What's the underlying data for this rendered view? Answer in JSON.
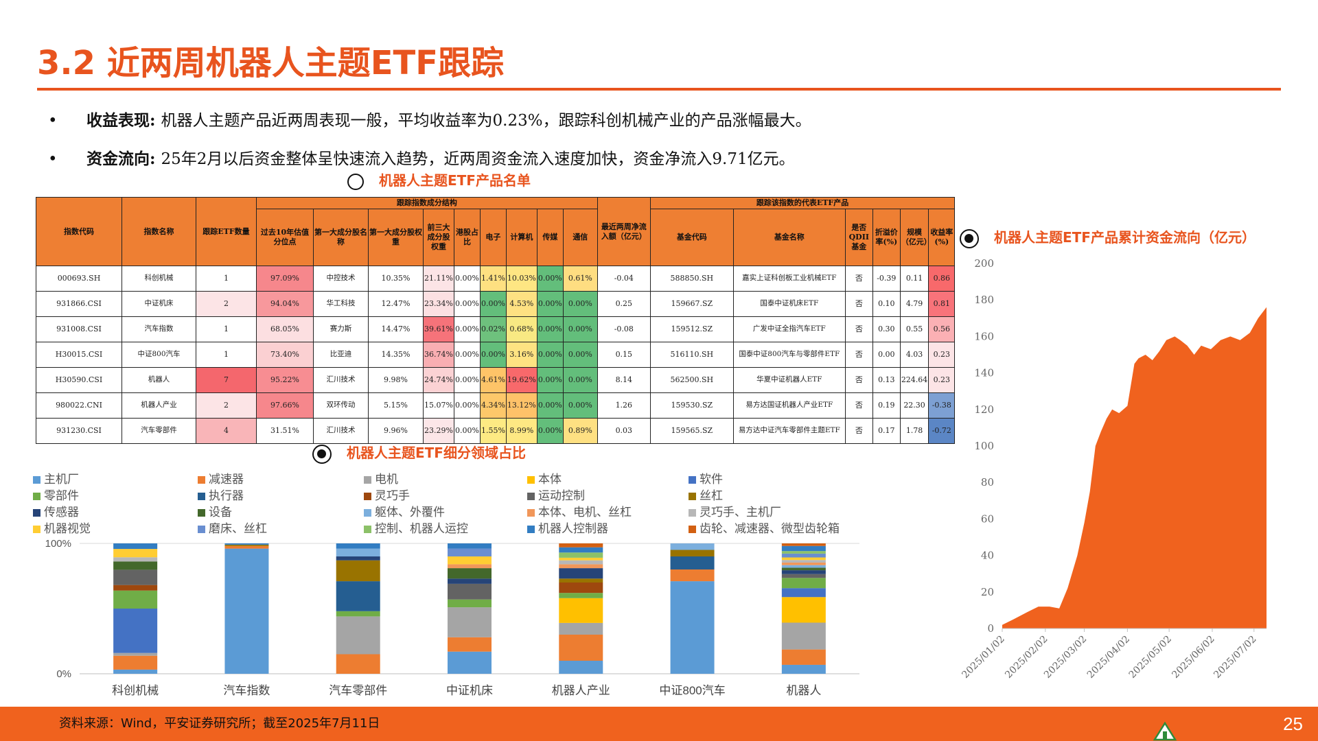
{
  "page": {
    "title": "3.2 近两周机器人主题ETF跟踪",
    "bullets": [
      {
        "label": "收益表现:",
        "text": "机器人主题产品近两周表现一般，平均收益率为0.23%，跟踪科创机械产业的产品涨幅最大。"
      },
      {
        "label": "资金流向:",
        "text": "25年2月以后资金整体呈快速流入趋势，近两周资金流入速度加快，资金净流入9.71亿元。"
      }
    ],
    "source": "资料来源：Wind，平安证券研究所；截至2025年7月11日",
    "page_number": "25"
  },
  "sections": {
    "table_title": "机器人主题ETF产品名单",
    "composition_title": "机器人主题ETF细分领域占比",
    "flow_title": "机器人主题ETF产品累计资金流向（亿元）"
  },
  "table": {
    "group_headers": {
      "structure": "跟踪指数成分结构",
      "products": "跟踪该指数的代表ETF产品"
    },
    "headers": [
      "指数代码",
      "指数名称",
      "跟踪ETF数量",
      "过去10年估值分位点",
      "第一大成分股名称",
      "第一大成分股权重",
      "前三大成分股权重",
      "港股占比",
      "电子",
      "计算机",
      "传媒",
      "通信",
      "最近两周净流入额（亿元）",
      "基金代码",
      "基金名称",
      "是否QDII基金",
      "折溢价率(%)",
      "规模（亿元）",
      "收益率(%)"
    ],
    "rows": [
      [
        "000693.SH",
        "科创机械",
        "1",
        "97.09%",
        "中控技术",
        "10.35%",
        "21.11%",
        "0.00%",
        "1.41%",
        "10.03%",
        "0.00%",
        "0.61%",
        "-0.04",
        "588850.SH",
        "嘉实上证科创板工业机械ETF",
        "否",
        "-0.39",
        "0.11",
        "0.86"
      ],
      [
        "931866.CSI",
        "中证机床",
        "2",
        "94.04%",
        "华工科技",
        "12.47%",
        "23.34%",
        "0.00%",
        "0.00%",
        "4.53%",
        "0.00%",
        "0.00%",
        "0.25",
        "159667.SZ",
        "国泰中证机床ETF",
        "否",
        "0.10",
        "4.79",
        "0.81"
      ],
      [
        "931008.CSI",
        "汽车指数",
        "1",
        "68.05%",
        "赛力斯",
        "14.47%",
        "39.61%",
        "0.00%",
        "0.02%",
        "0.68%",
        "0.00%",
        "0.00%",
        "-0.08",
        "159512.SZ",
        "广发中证全指汽车ETF",
        "否",
        "0.30",
        "0.55",
        "0.56"
      ],
      [
        "H30015.CSI",
        "中证800汽车",
        "1",
        "73.40%",
        "比亚迪",
        "14.35%",
        "36.74%",
        "0.00%",
        "0.00%",
        "3.16%",
        "0.00%",
        "0.00%",
        "0.15",
        "516110.SH",
        "国泰中证800汽车与零部件ETF",
        "否",
        "0.00",
        "4.03",
        "0.23"
      ],
      [
        "H30590.CSI",
        "机器人",
        "7",
        "95.22%",
        "汇川技术",
        "9.98%",
        "24.74%",
        "0.00%",
        "4.61%",
        "19.62%",
        "0.00%",
        "0.00%",
        "8.14",
        "562500.SH",
        "华夏中证机器人ETF",
        "否",
        "0.13",
        "224.64",
        "0.23"
      ],
      [
        "980022.CNI",
        "机器人产业",
        "2",
        "97.66%",
        "双环传动",
        "5.15%",
        "15.07%",
        "0.00%",
        "4.34%",
        "13.12%",
        "0.00%",
        "0.00%",
        "1.26",
        "159530.SZ",
        "易方达国证机器人产业ETF",
        "否",
        "0.19",
        "22.30",
        "-0.38"
      ],
      [
        "931230.CSI",
        "汽车零部件",
        "4",
        "31.51%",
        "汇川技术",
        "9.96%",
        "23.29%",
        "0.00%",
        "1.55%",
        "8.99%",
        "0.00%",
        "0.89%",
        "0.03",
        "159565.SZ",
        "易方达中证汽车零部件主题ETF",
        "否",
        "0.17",
        "1.78",
        "-0.72"
      ]
    ],
    "colors": {
      "header": "#EE7F33",
      "etf_count": [
        "#FFFFFF",
        "#FCE4E6",
        "#FFFFFF",
        "#FFFFFF",
        "#F4676D",
        "#FCE4E6",
        "#F9B5B8"
      ],
      "valuation": [
        "#F6878C",
        "#F7989C",
        "#FCDFE1",
        "#FBD0D2",
        "#F78D92",
        "#F6878C",
        "#FFFFFF"
      ],
      "top3": [
        "#FCE4E6",
        "#FCE0E2",
        "#F6737A",
        "#F9AEB2",
        "#FBD2D4",
        "#FFFFFF",
        "#FCE6E8"
      ],
      "electronics": [
        "#FEE081",
        "#63BE7B",
        "#6EC17D",
        "#63BE7B",
        "#FEC468",
        "#FDC86A",
        "#FDEA83"
      ],
      "computer": [
        "#FEE683",
        "#FEE182",
        "#F8E983",
        "#FEE382",
        "#F8696B",
        "#FEC269",
        "#FEE883"
      ],
      "media": "#63BE7B",
      "telecom": [
        "#FEDD81",
        "#63BE7B",
        "#63BE7B",
        "#63BE7B",
        "#63BE7B",
        "#63BE7B",
        "#FEE082"
      ],
      "return": [
        "#F8696B",
        "#F8737A",
        "#FBB0B4",
        "#FCE4E6",
        "#FCE4E6",
        "#7DA0D3",
        "#5B86C5"
      ]
    }
  },
  "composition": {
    "legend": [
      {
        "name": "主机厂",
        "color": "#5B9BD5"
      },
      {
        "name": "减速器",
        "color": "#ED7D31"
      },
      {
        "name": "电机",
        "color": "#A5A5A5"
      },
      {
        "name": "本体",
        "color": "#FFC000"
      },
      {
        "name": "软件",
        "color": "#4472C4"
      },
      {
        "name": "零部件",
        "color": "#70AD47"
      },
      {
        "name": "执行器",
        "color": "#255E91"
      },
      {
        "name": "灵巧手",
        "color": "#9E480E"
      },
      {
        "name": "运动控制",
        "color": "#636363"
      },
      {
        "name": "丝杠",
        "color": "#997300"
      },
      {
        "name": "传感器",
        "color": "#264478"
      },
      {
        "name": "设备",
        "color": "#43682B"
      },
      {
        "name": "躯体、外覆件",
        "color": "#7CAFDD"
      },
      {
        "name": "本体、电机、丝杠",
        "color": "#F1975A"
      },
      {
        "name": "灵巧手、主机厂",
        "color": "#B7B7B7"
      },
      {
        "name": "机器视觉",
        "color": "#FFCD33"
      },
      {
        "name": "磨床、丝杠",
        "color": "#698ED0"
      },
      {
        "name": "控制、机器人运控",
        "color": "#8CC168"
      },
      {
        "name": "机器人控制器",
        "color": "#327DC2"
      },
      {
        "name": "齿轮、减速器、微型齿轮箱",
        "color": "#D26012"
      }
    ]
  },
  "chart_data": [
    {
      "type": "bar",
      "stacked": true,
      "title": "机器人主题ETF细分领域占比",
      "categories": [
        "科创机械",
        "汽车指数",
        "汽车零部件",
        "中证机床",
        "机器人产业",
        "中证800汽车",
        "机器人"
      ],
      "ylim": [
        0,
        100
      ],
      "y_tick_labels": [
        "0%",
        "100%"
      ],
      "series": [
        {
          "name": "主机厂",
          "values": [
            3,
            96,
            0,
            17,
            10,
            71,
            7
          ]
        },
        {
          "name": "减速器",
          "values": [
            10,
            2,
            15,
            11,
            20,
            9,
            12
          ]
        },
        {
          "name": "电机",
          "values": [
            2,
            0,
            29,
            23,
            9,
            0,
            21
          ]
        },
        {
          "name": "本体",
          "values": [
            0,
            0,
            0,
            0,
            19,
            0,
            20
          ]
        },
        {
          "name": "软件",
          "values": [
            32,
            0,
            0,
            0,
            0,
            0,
            7
          ]
        },
        {
          "name": "零部件",
          "values": [
            13,
            0,
            4,
            6,
            4,
            0,
            8
          ]
        },
        {
          "name": "执行器",
          "values": [
            0,
            0,
            23,
            0,
            0,
            10,
            0
          ]
        },
        {
          "name": "灵巧手",
          "values": [
            4,
            0,
            0,
            0,
            8,
            0,
            0
          ]
        },
        {
          "name": "运动控制",
          "values": [
            11,
            0,
            0,
            12,
            0,
            0,
            3
          ]
        },
        {
          "name": "丝杠",
          "values": [
            0,
            1,
            16,
            0,
            3,
            5,
            0
          ]
        },
        {
          "name": "传感器",
          "values": [
            0,
            0,
            3,
            4,
            8,
            0,
            3
          ]
        },
        {
          "name": "设备",
          "values": [
            6,
            0,
            0,
            8,
            0,
            0,
            2
          ]
        },
        {
          "name": "躯体、外覆件",
          "values": [
            0,
            0,
            6,
            0,
            0,
            5,
            2
          ]
        },
        {
          "name": "本体、电机、丝杠",
          "values": [
            0,
            0,
            0,
            3,
            3,
            0,
            2
          ]
        },
        {
          "name": "灵巧手、主机厂",
          "values": [
            3,
            0,
            0,
            0,
            3,
            0,
            2
          ]
        },
        {
          "name": "机器视觉",
          "values": [
            6,
            0,
            0,
            6,
            2,
            0,
            2
          ]
        },
        {
          "name": "磨床、丝杠",
          "values": [
            0,
            0,
            0,
            6,
            0,
            0,
            3
          ]
        },
        {
          "name": "控制、机器人运控",
          "values": [
            0,
            0,
            0,
            0,
            4,
            0,
            2
          ]
        },
        {
          "name": "机器人控制器",
          "values": [
            4,
            1,
            4,
            4,
            4,
            0,
            4
          ]
        },
        {
          "name": "齿轮、减速器、微型齿轮箱",
          "values": [
            0,
            0,
            0,
            0,
            3,
            0,
            2
          ]
        }
      ]
    },
    {
      "type": "area",
      "title": "机器人主题ETF产品累计资金流向（亿元）",
      "color": "#F0621E",
      "ylim": [
        0,
        200
      ],
      "yticks": [
        0,
        20,
        40,
        60,
        80,
        100,
        120,
        140,
        160,
        180,
        200
      ],
      "x_tick_labels": [
        "2025/01/02",
        "2025/02/02",
        "2025/03/02",
        "2025/04/02",
        "2025/05/02",
        "2025/06/02",
        "2025/07/02"
      ],
      "x": [
        "2025/01/02",
        "2025/01/10",
        "2025/01/20",
        "2025/01/28",
        "2025/02/05",
        "2025/02/12",
        "2025/02/18",
        "2025/02/25",
        "2025/03/02",
        "2025/03/06",
        "2025/03/10",
        "2025/03/14",
        "2025/03/18",
        "2025/03/22",
        "2025/03/27",
        "2025/04/02",
        "2025/04/07",
        "2025/04/10",
        "2025/04/15",
        "2025/04/20",
        "2025/04/25",
        "2025/04/30",
        "2025/05/06",
        "2025/05/10",
        "2025/05/15",
        "2025/05/20",
        "2025/05/25",
        "2025/06/01",
        "2025/06/08",
        "2025/06/15",
        "2025/06/22",
        "2025/06/29",
        "2025/07/05",
        "2025/07/11"
      ],
      "values": [
        2,
        5,
        9,
        12,
        12,
        11,
        22,
        40,
        58,
        75,
        100,
        108,
        115,
        120,
        118,
        122,
        145,
        148,
        150,
        147,
        152,
        158,
        160,
        158,
        155,
        150,
        155,
        153,
        158,
        160,
        158,
        162,
        170,
        176
      ]
    }
  ]
}
